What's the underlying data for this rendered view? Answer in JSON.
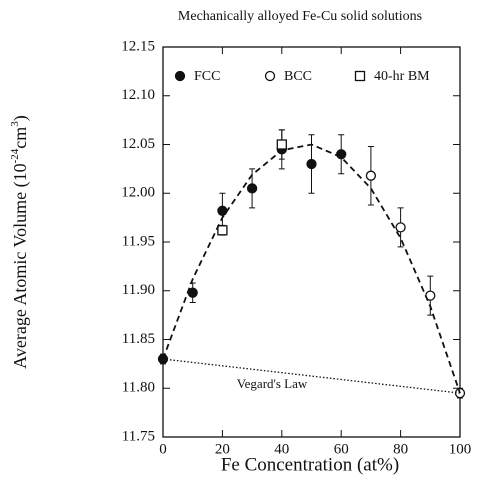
{
  "chart_data": {
    "type": "scatter",
    "title": "Mechanically alloyed Fe-Cu solid solutions",
    "x_label": "Fe Concentration (at%)",
    "y_label": {
      "text": "Average Atomic Volume (10",
      "sup1": "-24",
      "mid": "cm",
      "sup2": "3",
      "end": ")"
    },
    "xlim": [
      0,
      100
    ],
    "xticks": [
      0,
      20,
      40,
      60,
      80,
      100
    ],
    "ylim": [
      11.75,
      12.15
    ],
    "yticks": [
      11.75,
      {
        "value": 11.8,
        "label": "11.80"
      },
      11.85,
      {
        "value": 11.9,
        "label": "11.90"
      },
      11.95,
      {
        "value": 12.0,
        "label": "12.00"
      },
      12.05,
      {
        "value": 12.1,
        "label": "12.10"
      },
      12.15
    ],
    "series": [
      {
        "name": "FCC",
        "marker": "filled-circle",
        "color": "#111",
        "x": [
          0,
          10,
          20,
          30,
          40,
          50,
          60
        ],
        "values": [
          11.83,
          11.898,
          11.982,
          12.005,
          12.045,
          12.03,
          12.04
        ],
        "errors": [
          0.005,
          0.01,
          0.018,
          0.02,
          0.02,
          0.03,
          0.02
        ]
      },
      {
        "name": "BCC",
        "marker": "open-circle",
        "color": "#111",
        "x": [
          70,
          80,
          90,
          100
        ],
        "values": [
          12.018,
          11.965,
          11.895,
          11.795
        ],
        "errors": [
          0.03,
          0.02,
          0.02,
          0.005
        ]
      },
      {
        "name": "40-hr BM",
        "marker": "open-square",
        "color": "#111",
        "x": [
          20,
          40
        ],
        "values": [
          11.962,
          12.05
        ],
        "errors": [
          0.005,
          0.015
        ]
      },
      {
        "style": "dashed",
        "color": "#111",
        "x": [
          0,
          10,
          20,
          30,
          40,
          50,
          60,
          70,
          80,
          90,
          100
        ],
        "values": [
          11.83,
          11.912,
          11.975,
          12.019,
          12.044,
          12.05,
          12.037,
          12.005,
          11.954,
          11.884,
          11.795
        ]
      },
      {
        "name": "Vegard's Law",
        "style": "dotted",
        "color": "#111",
        "x": [
          0,
          100
        ],
        "values": [
          11.83,
          11.795
        ]
      }
    ]
  }
}
